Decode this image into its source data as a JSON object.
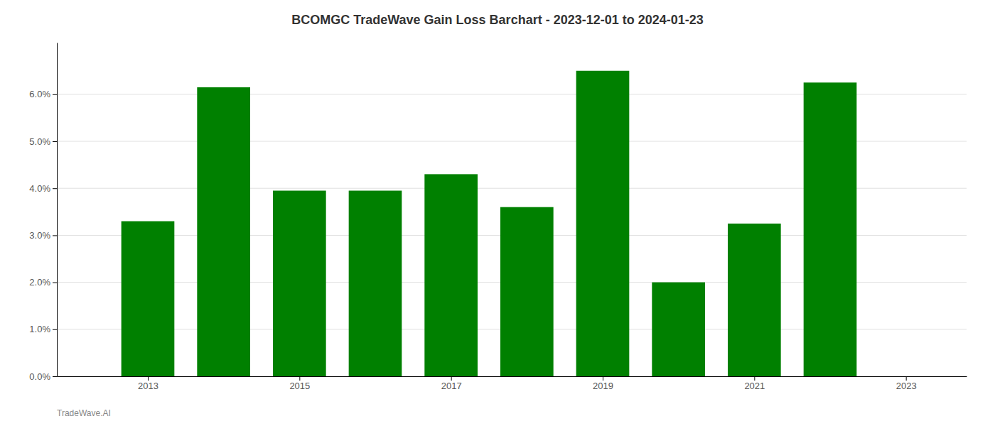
{
  "chart_data": {
    "type": "bar",
    "title": "BCOMGC TradeWave Gain Loss Barchart - 2023-12-01 to 2024-01-23",
    "annotations": [
      "TradeWave.AI"
    ],
    "x": [
      2013,
      2014,
      2015,
      2016,
      2017,
      2018,
      2019,
      2020,
      2021,
      2022
    ],
    "values": [
      0.033,
      0.0615,
      0.0395,
      0.0395,
      0.043,
      0.036,
      0.065,
      0.02,
      0.0325,
      0.0625
    ],
    "color": "#008000",
    "xlim": [
      2011.8,
      2023.8
    ],
    "xticks": [
      2013,
      2015,
      2017,
      2019,
      2021,
      2023
    ],
    "ylim": [
      0.0,
      0.071
    ],
    "yticks": [
      {
        "value": 0.0,
        "label": "0.0%"
      },
      {
        "value": 0.01,
        "label": "1.0%"
      },
      {
        "value": 0.02,
        "label": "2.0%"
      },
      {
        "value": 0.03,
        "label": "3.0%"
      },
      {
        "value": 0.04,
        "label": "4.0%"
      },
      {
        "value": 0.05,
        "label": "5.0%"
      },
      {
        "value": 0.06,
        "label": "6.0%"
      }
    ],
    "grid": "y"
  }
}
